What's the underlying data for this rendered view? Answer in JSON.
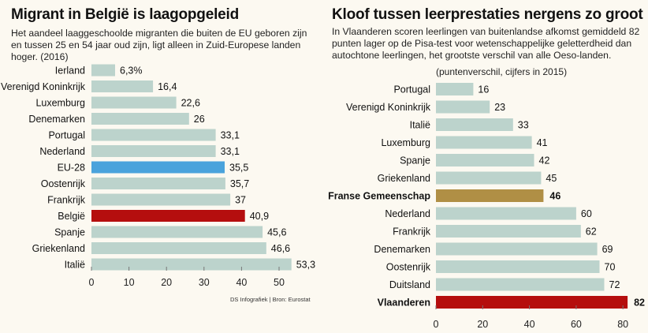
{
  "chart_data": [
    {
      "type": "bar",
      "orientation": "horizontal",
      "title": "Migrant in België is laagopgeleid",
      "subtitle": "Het aandeel laaggeschoolde migranten die buiten de EU geboren zijn en tussen 25 en 54 jaar oud zijn, ligt alleen in Zuid-Europese landen hoger. (2016)",
      "categories": [
        "Ierland",
        "Verenigd Koninkrijk",
        "Luxemburg",
        "Denemarken",
        "Portugal",
        "Nederland",
        "EU-28",
        "Oostenrijk",
        "Frankrijk",
        "België",
        "Spanje",
        "Griekenland",
        "Italië"
      ],
      "values": [
        6.3,
        16.4,
        22.6,
        26,
        33.1,
        33.1,
        35.5,
        35.7,
        37,
        40.9,
        45.6,
        46.6,
        53.3
      ],
      "value_labels": [
        "6,3%",
        "16,4",
        "22,6",
        "26",
        "33,1",
        "33,1",
        "35,5",
        "35,7",
        "37",
        "40,9",
        "45,6",
        "46,6",
        "53,3"
      ],
      "highlight": {
        "EU-28": "#4aa3dc",
        "België": "#b50e0e"
      },
      "default_color": "#bcd3cc",
      "xlim": [
        0,
        55
      ],
      "xticks": [
        0,
        10,
        20,
        30,
        40,
        50
      ],
      "xlabel": "",
      "ylabel": "",
      "grid": false,
      "source": "DS Infografiek | Bron: Eurostat"
    },
    {
      "type": "bar",
      "orientation": "horizontal",
      "title": "Kloof tussen leerprestaties nergens zo groot",
      "subtitle": "In Vlaanderen scoren leerlingen van buitenlandse afkomst gemiddeld 82 punten lager op de Pisa-test voor wetenschappelijke geletterdheid dan autochtone leerlingen, het grootste verschil van alle Oeso-landen.",
      "note": "(puntenverschil, cijfers in 2015)",
      "categories": [
        "Portugal",
        "Verenigd Koninkrijk",
        "Italië",
        "Luxemburg",
        "Spanje",
        "Griekenland",
        "Franse Gemeenschap",
        "Nederland",
        "Frankrijk",
        "Denemarken",
        "Oostenrijk",
        "Duitsland",
        "Vlaanderen"
      ],
      "values": [
        16,
        23,
        33,
        41,
        42,
        45,
        46,
        60,
        62,
        69,
        70,
        72,
        82
      ],
      "value_labels": [
        "16",
        "23",
        "33",
        "41",
        "42",
        "45",
        "46",
        "60",
        "62",
        "69",
        "70",
        "72",
        "82"
      ],
      "highlight": {
        "Franse Gemeenschap": "#b08f45",
        "Vlaanderen": "#b50e0e"
      },
      "bold": [
        "Franse Gemeenschap",
        "Vlaanderen"
      ],
      "default_color": "#bcd3cc",
      "xlim": [
        0,
        85
      ],
      "xticks": [
        0,
        20,
        40,
        60,
        80
      ],
      "xlabel": "",
      "ylabel": "",
      "grid": false
    }
  ]
}
